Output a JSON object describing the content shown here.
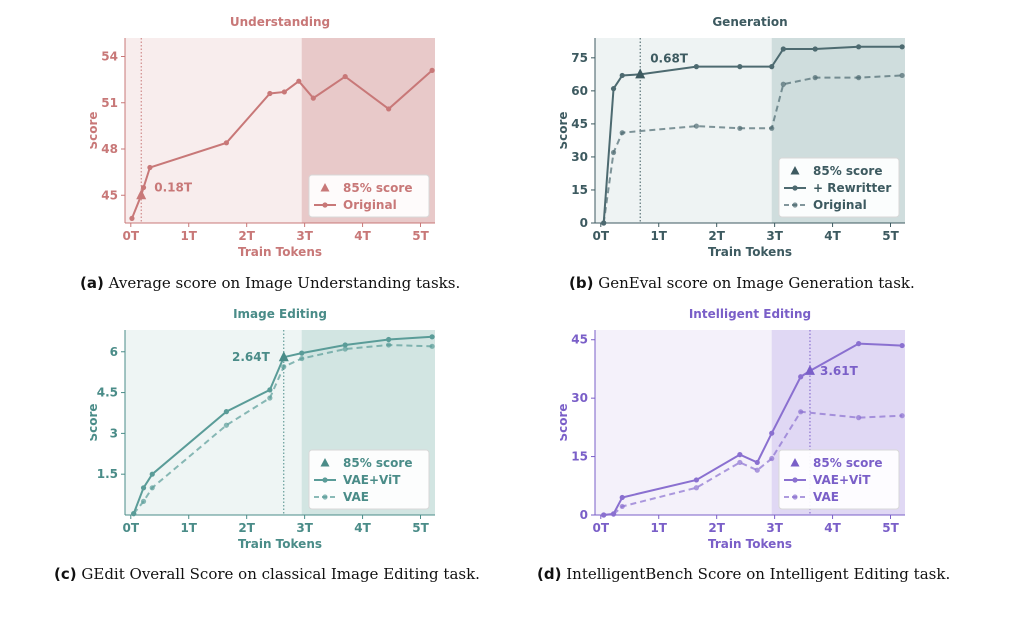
{
  "chart_data": [
    {
      "type": "line",
      "title": "Understanding",
      "xlabel": "Train Tokens",
      "ylabel": "Score",
      "x_ticks": [
        "0T",
        "1T",
        "2T",
        "3T",
        "4T",
        "5T"
      ],
      "xlim": [
        -0.1,
        5.25
      ],
      "y_ticks": [
        45,
        48,
        51,
        54
      ],
      "ylim": [
        43.2,
        55.2
      ],
      "shaded_from_x": 2.95,
      "marker": {
        "x": 0.18,
        "y": 45.0,
        "label": "0.18T"
      },
      "legend_loc": "lower right",
      "legend": [
        "85% score",
        "Original"
      ],
      "series": [
        {
          "name": "Original",
          "dashed": false,
          "x": [
            0.02,
            0.18,
            0.22,
            0.33,
            1.65,
            2.4,
            2.65,
            2.9,
            3.15,
            3.7,
            4.45,
            5.2
          ],
          "y": [
            43.5,
            45.0,
            45.5,
            46.8,
            48.4,
            51.6,
            51.7,
            52.4,
            51.3,
            52.7,
            50.6,
            53.1
          ]
        }
      ],
      "colors": {
        "line": "#c87878",
        "text": "#c87878",
        "bg": "#f8eded",
        "shade": "#e8c9c9"
      }
    },
    {
      "type": "line",
      "title": "Generation",
      "xlabel": "Train Tokens",
      "ylabel": "Score",
      "x_ticks": [
        "0T",
        "1T",
        "2T",
        "3T",
        "4T",
        "5T"
      ],
      "xlim": [
        -0.1,
        5.25
      ],
      "y_ticks": [
        0,
        15,
        30,
        45,
        60,
        75
      ],
      "ylim": [
        0,
        84
      ],
      "shaded_from_x": 2.95,
      "marker": {
        "x": 0.68,
        "y": 67.5,
        "label": "0.68T"
      },
      "legend_loc": "lower right",
      "legend": [
        "85% score",
        "+ Rewritter",
        "Original"
      ],
      "series": [
        {
          "name": "+ Rewritter",
          "dashed": false,
          "x": [
            0.05,
            0.22,
            0.37,
            0.68,
            1.65,
            2.4,
            2.95,
            3.15,
            3.7,
            4.45,
            5.2
          ],
          "y": [
            0,
            61,
            67,
            67.5,
            71,
            71,
            71,
            79,
            79,
            80,
            80
          ]
        },
        {
          "name": "Original",
          "dashed": true,
          "x": [
            0.05,
            0.22,
            0.37,
            1.65,
            2.4,
            2.95,
            3.15,
            3.7,
            4.45,
            5.2
          ],
          "y": [
            0,
            32,
            41,
            44,
            43,
            43,
            63,
            66,
            66,
            67
          ]
        }
      ],
      "colors": {
        "line": "#4d6a70",
        "text": "#3d5a60",
        "bg": "#eef3f3",
        "shade": "#cfdddd"
      }
    },
    {
      "type": "line",
      "title": "Image Editing",
      "xlabel": "Train Tokens",
      "ylabel": "Score",
      "x_ticks": [
        "0T",
        "1T",
        "2T",
        "3T",
        "4T",
        "5T"
      ],
      "xlim": [
        -0.1,
        5.25
      ],
      "y_ticks": [
        1.5,
        3.0,
        4.5,
        6.0
      ],
      "ylim": [
        0,
        6.8
      ],
      "shaded_from_x": 2.95,
      "marker": {
        "x": 2.64,
        "y": 5.8,
        "label": "2.64T"
      },
      "legend_loc": "lower right",
      "legend": [
        "85% score",
        "VAE+ViT",
        "VAE"
      ],
      "series": [
        {
          "name": "VAE+ViT",
          "dashed": false,
          "x": [
            0.05,
            0.22,
            0.37,
            1.65,
            2.4,
            2.64,
            2.95,
            3.7,
            4.45,
            5.2
          ],
          "y": [
            0.05,
            1.0,
            1.5,
            3.8,
            4.6,
            5.8,
            5.95,
            6.25,
            6.45,
            6.55
          ]
        },
        {
          "name": "VAE",
          "dashed": true,
          "x": [
            0.05,
            0.22,
            0.37,
            1.65,
            2.4,
            2.64,
            2.95,
            3.7,
            4.45,
            5.2
          ],
          "y": [
            0.05,
            0.5,
            1.0,
            3.3,
            4.3,
            5.45,
            5.75,
            6.1,
            6.25,
            6.2
          ]
        }
      ],
      "colors": {
        "line": "#5a9c98",
        "text": "#4a8c88",
        "bg": "#eef5f4",
        "shade": "#d2e5e2"
      }
    },
    {
      "type": "line",
      "title": "Intelligent Editing",
      "xlabel": "Train Tokens",
      "ylabel": "Score",
      "x_ticks": [
        "0T",
        "1T",
        "2T",
        "3T",
        "4T",
        "5T"
      ],
      "xlim": [
        -0.1,
        5.25
      ],
      "y_ticks": [
        0,
        15,
        30,
        45
      ],
      "ylim": [
        0,
        47.5
      ],
      "shaded_from_x": 2.95,
      "marker": {
        "x": 3.61,
        "y": 37,
        "label": "3.61T"
      },
      "legend_loc": "lower right",
      "legend": [
        "85% score",
        "VAE+ViT",
        "VAE"
      ],
      "series": [
        {
          "name": "VAE+ViT",
          "dashed": false,
          "x": [
            0.05,
            0.22,
            0.37,
            1.65,
            2.4,
            2.7,
            2.95,
            3.45,
            3.61,
            4.45,
            5.2
          ],
          "y": [
            0,
            0.3,
            4.5,
            9,
            15.5,
            13.5,
            21,
            35.5,
            37,
            44,
            43.5
          ]
        },
        {
          "name": "VAE",
          "dashed": true,
          "x": [
            0.05,
            0.22,
            0.37,
            1.65,
            2.4,
            2.7,
            2.95,
            3.45,
            4.45,
            5.2
          ],
          "y": [
            0,
            0.2,
            2.2,
            7,
            13.5,
            11.5,
            14.5,
            26.5,
            25,
            25.5
          ]
        }
      ],
      "colors": {
        "line": "#8a70d0",
        "text": "#7a5fc8",
        "bg": "#f4f1fa",
        "shade": "#e0d8f4"
      }
    }
  ],
  "captions": [
    {
      "label": "(a)",
      "text": "Average score on Image Understanding tasks."
    },
    {
      "label": "(b)",
      "text": "GenEval score on Image Generation task."
    },
    {
      "label": "(c)",
      "text": "GEdit Overall Score on classical Image Editing task."
    },
    {
      "label": "(d)",
      "text": "IntelligentBench Score on Intelligent Editing task."
    }
  ]
}
